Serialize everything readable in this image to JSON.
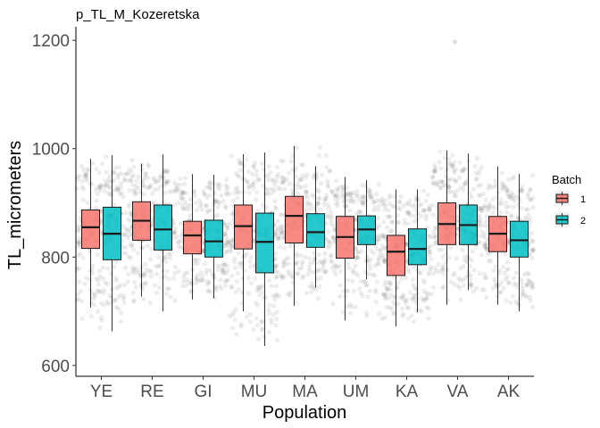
{
  "chart_data": {
    "type": "boxplot",
    "title": "p_TL_M_Kozeretska",
    "xlabel": "Population",
    "ylabel": "TL_micrometers",
    "categories": [
      "YE",
      "RE",
      "GI",
      "MU",
      "MA",
      "UM",
      "KA",
      "VA",
      "AK"
    ],
    "yticks": [
      600,
      800,
      1000,
      1200
    ],
    "ylim": [
      580,
      1225
    ],
    "grid": false,
    "legend": {
      "title": "Batch",
      "position": "right"
    },
    "series": [
      {
        "name": "1",
        "color": "#F8766D",
        "boxes": [
          {
            "category": "YE",
            "low": 707,
            "q1": 816,
            "median": 855,
            "q3": 887,
            "high": 981
          },
          {
            "category": "RE",
            "low": 727,
            "q1": 831,
            "median": 867,
            "q3": 902,
            "high": 972
          },
          {
            "category": "GI",
            "low": 722,
            "q1": 806,
            "median": 840,
            "q3": 866,
            "high": 953
          },
          {
            "category": "MU",
            "low": 700,
            "q1": 815,
            "median": 857,
            "q3": 896,
            "high": 990
          },
          {
            "category": "MA",
            "low": 710,
            "q1": 826,
            "median": 876,
            "q3": 912,
            "high": 1005
          },
          {
            "category": "UM",
            "low": 683,
            "q1": 798,
            "median": 837,
            "q3": 875,
            "high": 948
          },
          {
            "category": "KA",
            "low": 672,
            "q1": 766,
            "median": 810,
            "q3": 840,
            "high": 925
          },
          {
            "category": "VA",
            "low": 712,
            "q1": 823,
            "median": 861,
            "q3": 900,
            "high": 997
          },
          {
            "category": "AK",
            "low": 712,
            "q1": 810,
            "median": 843,
            "q3": 875,
            "high": 967
          }
        ]
      },
      {
        "name": "2",
        "color": "#00BFC4",
        "boxes": [
          {
            "category": "YE",
            "low": 663,
            "q1": 795,
            "median": 843,
            "q3": 892,
            "high": 988
          },
          {
            "category": "RE",
            "low": 700,
            "q1": 813,
            "median": 851,
            "q3": 896,
            "high": 990
          },
          {
            "category": "GI",
            "low": 724,
            "q1": 800,
            "median": 829,
            "q3": 868,
            "high": 952
          },
          {
            "category": "MU",
            "low": 636,
            "q1": 771,
            "median": 828,
            "q3": 881,
            "high": 993
          },
          {
            "category": "MA",
            "low": 744,
            "q1": 818,
            "median": 846,
            "q3": 880,
            "high": 968
          },
          {
            "category": "UM",
            "low": 759,
            "q1": 823,
            "median": 851,
            "q3": 876,
            "high": 942
          },
          {
            "category": "KA",
            "low": 698,
            "q1": 786,
            "median": 815,
            "q3": 852,
            "high": 925
          },
          {
            "category": "VA",
            "low": 739,
            "q1": 823,
            "median": 859,
            "q3": 896,
            "high": 991
          },
          {
            "category": "AK",
            "low": 700,
            "q1": 800,
            "median": 831,
            "q3": 866,
            "high": 953
          }
        ]
      }
    ],
    "outliers": [
      {
        "category": "VA",
        "value": 1197
      }
    ]
  }
}
